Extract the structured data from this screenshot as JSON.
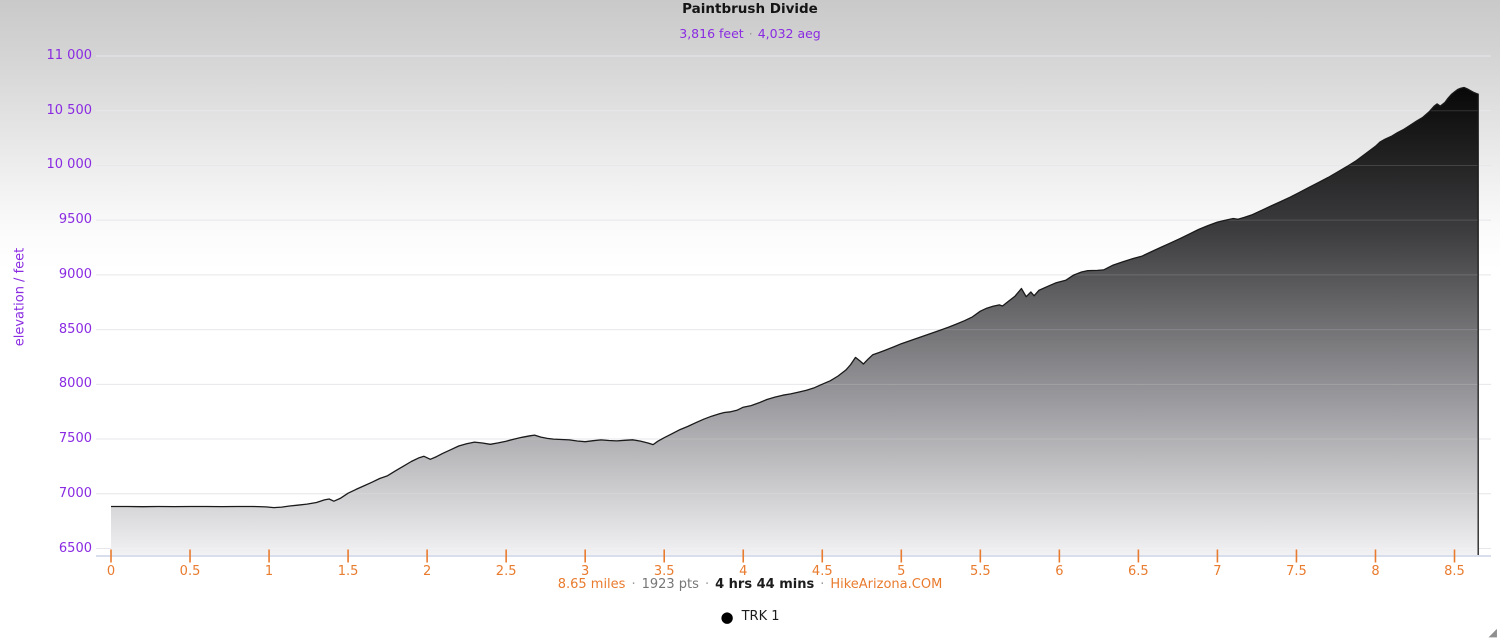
{
  "page": {
    "title": "Paintbrush Divide"
  },
  "subtitle": {
    "gain": "3,816 feet",
    "separator": "·",
    "aeg": "4,032 aeg"
  },
  "footer": {
    "distance": "8.65 miles",
    "separator": "·",
    "points": "1923 pts",
    "duration": "4 hrs 44 mins",
    "site": "HikeArizona.COM"
  },
  "legend": {
    "marker": "●",
    "label": "TRK 1"
  },
  "resize_grip": "◢",
  "colors": {
    "purple": "#8A2BE2",
    "orange": "#E97B2E",
    "line": "#1a1a1a",
    "axis_line": "#D8DEEB",
    "grid": "#E3E3E8",
    "grid_overlay": "rgba(255,255,255,0.15)",
    "fill_top": "#050505",
    "fill_upper_mid": "#3d3d3f",
    "fill_lower_mid": "#9c9ca0",
    "fill_bottom": "#f2f2f4"
  },
  "chart_data": {
    "type": "area",
    "title": "Paintbrush Divide",
    "xlabel": "",
    "ylabel": "elevation / feet",
    "grid": "horizontal",
    "legend_position": "bottom",
    "xlim": [
      0,
      8.73
    ],
    "ylim": [
      6500,
      11000
    ],
    "x_ticks": {
      "values": [
        0,
        0.5,
        1,
        1.5,
        2,
        2.5,
        3,
        3.5,
        4,
        4.5,
        5,
        5.5,
        6,
        6.5,
        7,
        7.5,
        8,
        8.5
      ],
      "labels": [
        "0",
        "0.5",
        "1",
        "1.5",
        "2",
        "2.5",
        "3",
        "3.5",
        "4",
        "4.5",
        "5",
        "5.5",
        "6",
        "6.5",
        "7",
        "7.5",
        "8",
        "8.5"
      ]
    },
    "y_ticks": {
      "values": [
        6500,
        7000,
        7500,
        8000,
        8500,
        9000,
        9500,
        10000,
        10500,
        11000
      ],
      "labels": [
        "6500",
        "7000",
        "7500",
        "8000",
        "8500",
        "9000",
        "9500",
        "10 000",
        "10 500",
        "11 000"
      ]
    },
    "stats": {
      "distance_miles": 8.65,
      "track_points": 1923,
      "duration": "4 hrs 44 mins",
      "elevation_gain_feet": 3816,
      "aeg_feet": 4032,
      "start_elevation_feet": 6884,
      "max_elevation_feet": 10712,
      "end_elevation_feet": 10652
    },
    "series": [
      {
        "name": "TRK 1",
        "color": "#1a1a1a",
        "points": [
          [
            0.0,
            6884
          ],
          [
            0.1,
            6884
          ],
          [
            0.2,
            6882
          ],
          [
            0.3,
            6884
          ],
          [
            0.4,
            6883
          ],
          [
            0.5,
            6884
          ],
          [
            0.6,
            6884
          ],
          [
            0.7,
            6883
          ],
          [
            0.8,
            6884
          ],
          [
            0.9,
            6884
          ],
          [
            0.98,
            6880
          ],
          [
            1.03,
            6874
          ],
          [
            1.08,
            6878
          ],
          [
            1.13,
            6888
          ],
          [
            1.18,
            6896
          ],
          [
            1.24,
            6906
          ],
          [
            1.3,
            6920
          ],
          [
            1.35,
            6944
          ],
          [
            1.38,
            6952
          ],
          [
            1.41,
            6932
          ],
          [
            1.45,
            6958
          ],
          [
            1.5,
            7005
          ],
          [
            1.55,
            7040
          ],
          [
            1.6,
            7072
          ],
          [
            1.65,
            7105
          ],
          [
            1.7,
            7140
          ],
          [
            1.75,
            7165
          ],
          [
            1.8,
            7210
          ],
          [
            1.85,
            7252
          ],
          [
            1.9,
            7295
          ],
          [
            1.95,
            7330
          ],
          [
            1.98,
            7342
          ],
          [
            2.02,
            7315
          ],
          [
            2.06,
            7340
          ],
          [
            2.1,
            7370
          ],
          [
            2.15,
            7403
          ],
          [
            2.2,
            7437
          ],
          [
            2.25,
            7458
          ],
          [
            2.3,
            7472
          ],
          [
            2.35,
            7464
          ],
          [
            2.4,
            7452
          ],
          [
            2.45,
            7465
          ],
          [
            2.5,
            7480
          ],
          [
            2.55,
            7500
          ],
          [
            2.6,
            7516
          ],
          [
            2.65,
            7530
          ],
          [
            2.68,
            7536
          ],
          [
            2.72,
            7518
          ],
          [
            2.76,
            7506
          ],
          [
            2.8,
            7500
          ],
          [
            2.85,
            7496
          ],
          [
            2.9,
            7492
          ],
          [
            2.95,
            7482
          ],
          [
            3.0,
            7476
          ],
          [
            3.05,
            7485
          ],
          [
            3.1,
            7492
          ],
          [
            3.15,
            7487
          ],
          [
            3.2,
            7483
          ],
          [
            3.25,
            7489
          ],
          [
            3.3,
            7493
          ],
          [
            3.35,
            7481
          ],
          [
            3.4,
            7463
          ],
          [
            3.43,
            7449
          ],
          [
            3.46,
            7480
          ],
          [
            3.5,
            7512
          ],
          [
            3.55,
            7549
          ],
          [
            3.6,
            7586
          ],
          [
            3.65,
            7616
          ],
          [
            3.7,
            7649
          ],
          [
            3.75,
            7681
          ],
          [
            3.8,
            7709
          ],
          [
            3.85,
            7731
          ],
          [
            3.88,
            7743
          ],
          [
            3.92,
            7749
          ],
          [
            3.96,
            7763
          ],
          [
            4.0,
            7791
          ],
          [
            4.05,
            7806
          ],
          [
            4.1,
            7831
          ],
          [
            4.15,
            7861
          ],
          [
            4.2,
            7883
          ],
          [
            4.25,
            7901
          ],
          [
            4.3,
            7913
          ],
          [
            4.35,
            7929
          ],
          [
            4.4,
            7946
          ],
          [
            4.45,
            7969
          ],
          [
            4.5,
            8001
          ],
          [
            4.55,
            8032
          ],
          [
            4.6,
            8076
          ],
          [
            4.65,
            8132
          ],
          [
            4.68,
            8181
          ],
          [
            4.71,
            8246
          ],
          [
            4.74,
            8212
          ],
          [
            4.76,
            8186
          ],
          [
            4.79,
            8231
          ],
          [
            4.82,
            8271
          ],
          [
            4.86,
            8291
          ],
          [
            4.9,
            8313
          ],
          [
            4.95,
            8341
          ],
          [
            5.0,
            8371
          ],
          [
            5.05,
            8396
          ],
          [
            5.1,
            8421
          ],
          [
            5.15,
            8446
          ],
          [
            5.2,
            8471
          ],
          [
            5.25,
            8496
          ],
          [
            5.3,
            8523
          ],
          [
            5.35,
            8551
          ],
          [
            5.4,
            8581
          ],
          [
            5.45,
            8616
          ],
          [
            5.5,
            8668
          ],
          [
            5.54,
            8696
          ],
          [
            5.58,
            8713
          ],
          [
            5.62,
            8726
          ],
          [
            5.64,
            8716
          ],
          [
            5.68,
            8761
          ],
          [
            5.72,
            8806
          ],
          [
            5.76,
            8876
          ],
          [
            5.79,
            8801
          ],
          [
            5.82,
            8844
          ],
          [
            5.84,
            8809
          ],
          [
            5.87,
            8858
          ],
          [
            5.92,
            8891
          ],
          [
            5.98,
            8929
          ],
          [
            6.04,
            8951
          ],
          [
            6.09,
            8998
          ],
          [
            6.14,
            9026
          ],
          [
            6.18,
            9039
          ],
          [
            6.24,
            9041
          ],
          [
            6.28,
            9046
          ],
          [
            6.34,
            9089
          ],
          [
            6.4,
            9119
          ],
          [
            6.47,
            9151
          ],
          [
            6.52,
            9170
          ],
          [
            6.58,
            9210
          ],
          [
            6.64,
            9250
          ],
          [
            6.7,
            9290
          ],
          [
            6.76,
            9330
          ],
          [
            6.82,
            9372
          ],
          [
            6.88,
            9415
          ],
          [
            6.94,
            9450
          ],
          [
            7.0,
            9482
          ],
          [
            7.05,
            9500
          ],
          [
            7.1,
            9515
          ],
          [
            7.13,
            9508
          ],
          [
            7.17,
            9525
          ],
          [
            7.22,
            9550
          ],
          [
            7.28,
            9590
          ],
          [
            7.34,
            9630
          ],
          [
            7.4,
            9670
          ],
          [
            7.46,
            9710
          ],
          [
            7.52,
            9755
          ],
          [
            7.58,
            9800
          ],
          [
            7.64,
            9845
          ],
          [
            7.7,
            9890
          ],
          [
            7.76,
            9940
          ],
          [
            7.82,
            9990
          ],
          [
            7.88,
            10045
          ],
          [
            7.94,
            10110
          ],
          [
            8.0,
            10175
          ],
          [
            8.03,
            10215
          ],
          [
            8.06,
            10240
          ],
          [
            8.1,
            10265
          ],
          [
            8.14,
            10300
          ],
          [
            8.18,
            10330
          ],
          [
            8.22,
            10368
          ],
          [
            8.26,
            10405
          ],
          [
            8.3,
            10440
          ],
          [
            8.34,
            10490
          ],
          [
            8.37,
            10540
          ],
          [
            8.39,
            10562
          ],
          [
            8.41,
            10542
          ],
          [
            8.44,
            10576
          ],
          [
            8.46,
            10616
          ],
          [
            8.48,
            10648
          ],
          [
            8.5,
            10672
          ],
          [
            8.52,
            10694
          ],
          [
            8.54,
            10706
          ],
          [
            8.56,
            10712
          ],
          [
            8.58,
            10700
          ],
          [
            8.6,
            10684
          ],
          [
            8.62,
            10668
          ],
          [
            8.64,
            10656
          ],
          [
            8.65,
            10652
          ]
        ]
      }
    ]
  }
}
